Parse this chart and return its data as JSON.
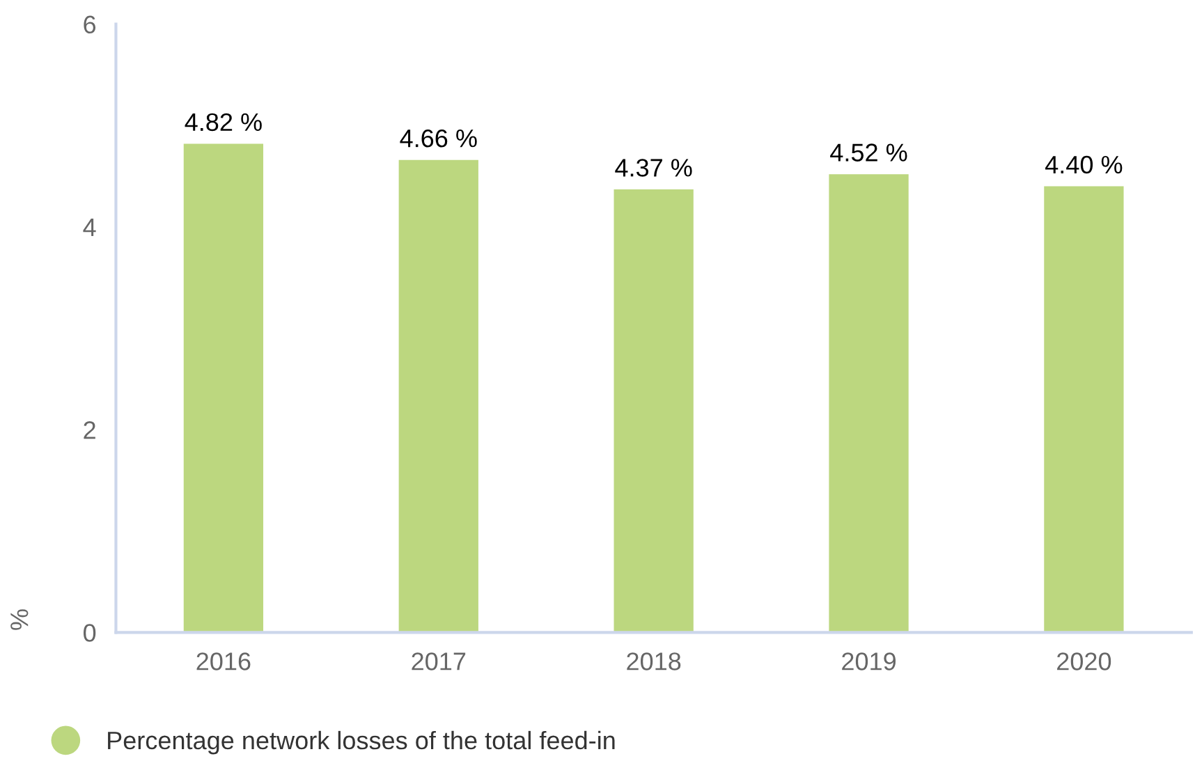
{
  "chart_data": {
    "type": "bar",
    "ylabel": "%",
    "categories": [
      "2016",
      "2017",
      "2018",
      "2019",
      "2020"
    ],
    "series": [
      {
        "name": "Percentage network losses of the total feed-in",
        "color": "#bcd77f",
        "values": [
          4.82,
          4.66,
          4.37,
          4.52,
          4.4
        ],
        "value_labels": [
          "4.82 %",
          "4.66 %",
          "4.37 %",
          "4.52 %",
          "4.40 %"
        ]
      }
    ],
    "ylim": [
      0,
      6
    ],
    "yticks": [
      0,
      2,
      4,
      6
    ],
    "grid": false,
    "legend": "bottom"
  }
}
